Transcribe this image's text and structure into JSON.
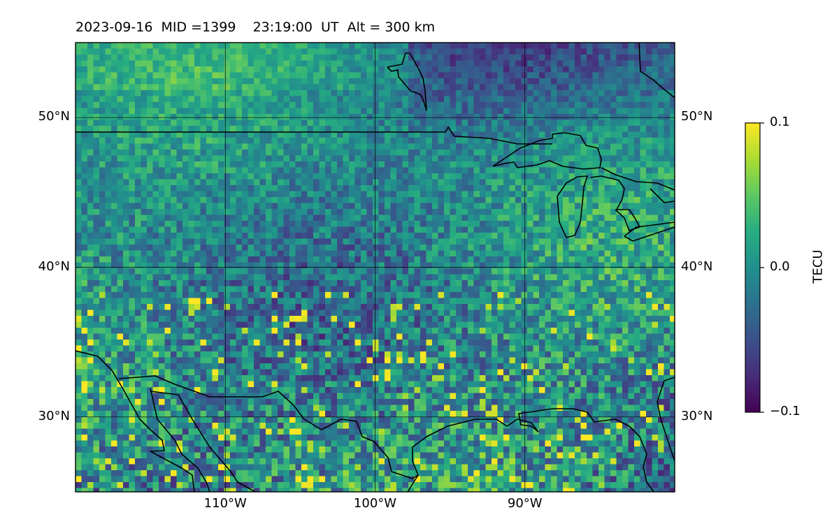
{
  "title": "2023-09-16  MID =1399    23:19:00  UT  Alt = 300 km",
  "map": {
    "lon_range": [
      -120,
      -80
    ],
    "lat_range": [
      25,
      55
    ],
    "gridlines": true,
    "lat_ticks": [
      {
        "value": 50,
        "label": "50°N"
      },
      {
        "value": 40,
        "label": "40°N"
      },
      {
        "value": 30,
        "label": "30°N"
      }
    ],
    "lon_ticks": [
      {
        "value": -110,
        "label": "110°W"
      },
      {
        "value": -100,
        "label": "100°W"
      },
      {
        "value": -90,
        "label": "90°W"
      }
    ],
    "colormap": "viridis"
  },
  "colorbar": {
    "label": "TECU",
    "min": -0.1,
    "max": 0.1,
    "ticks": [
      {
        "value": 0.1,
        "label": "0.1"
      },
      {
        "value": 0.0,
        "label": "0.0"
      },
      {
        "value": -0.1,
        "label": "−0.1"
      }
    ]
  },
  "colors": {
    "viridis": [
      "#440154",
      "#472c7a",
      "#3b518b",
      "#2c718e",
      "#21908d",
      "#27ad81",
      "#5cc863",
      "#aadc32",
      "#fde725"
    ]
  }
}
